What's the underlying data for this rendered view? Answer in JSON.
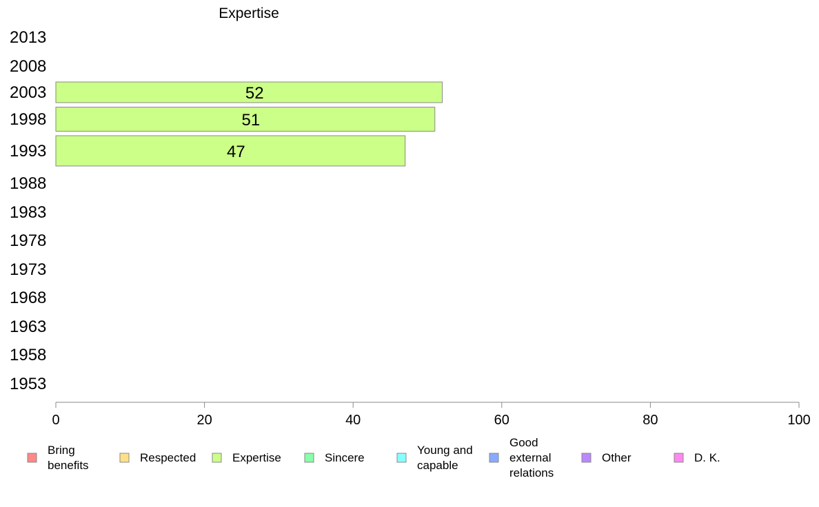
{
  "chart_data": {
    "type": "bar",
    "orientation": "horizontal",
    "title": "Expertise",
    "categories": [
      "2013",
      "2008",
      "2003",
      "1998",
      "1993",
      "1988",
      "1983",
      "1978",
      "1973",
      "1968",
      "1963",
      "1958",
      "1953"
    ],
    "series": [
      {
        "name": "Expertise",
        "color": "#ccff88",
        "values": [
          null,
          null,
          52,
          51,
          47,
          null,
          null,
          null,
          null,
          null,
          null,
          null,
          null
        ]
      }
    ],
    "xlim": [
      0,
      100
    ],
    "xticks": [
      "0",
      "20",
      "40",
      "60",
      "80",
      "100"
    ],
    "grid": false,
    "legend_position": "bottom",
    "legend": [
      {
        "label": "Bring benefits",
        "color": "#ff8888"
      },
      {
        "label": "Respected",
        "color": "#ffe088"
      },
      {
        "label": "Expertise",
        "color": "#ccff88"
      },
      {
        "label": "Sincere",
        "color": "#88ffaa"
      },
      {
        "label": "Young and capable",
        "color": "#88ffff"
      },
      {
        "label": "Good external relations",
        "color": "#88aaff"
      },
      {
        "label": "Other",
        "color": "#bb88ff"
      },
      {
        "label": "D. K.",
        "color": "#ff88ee"
      }
    ]
  }
}
